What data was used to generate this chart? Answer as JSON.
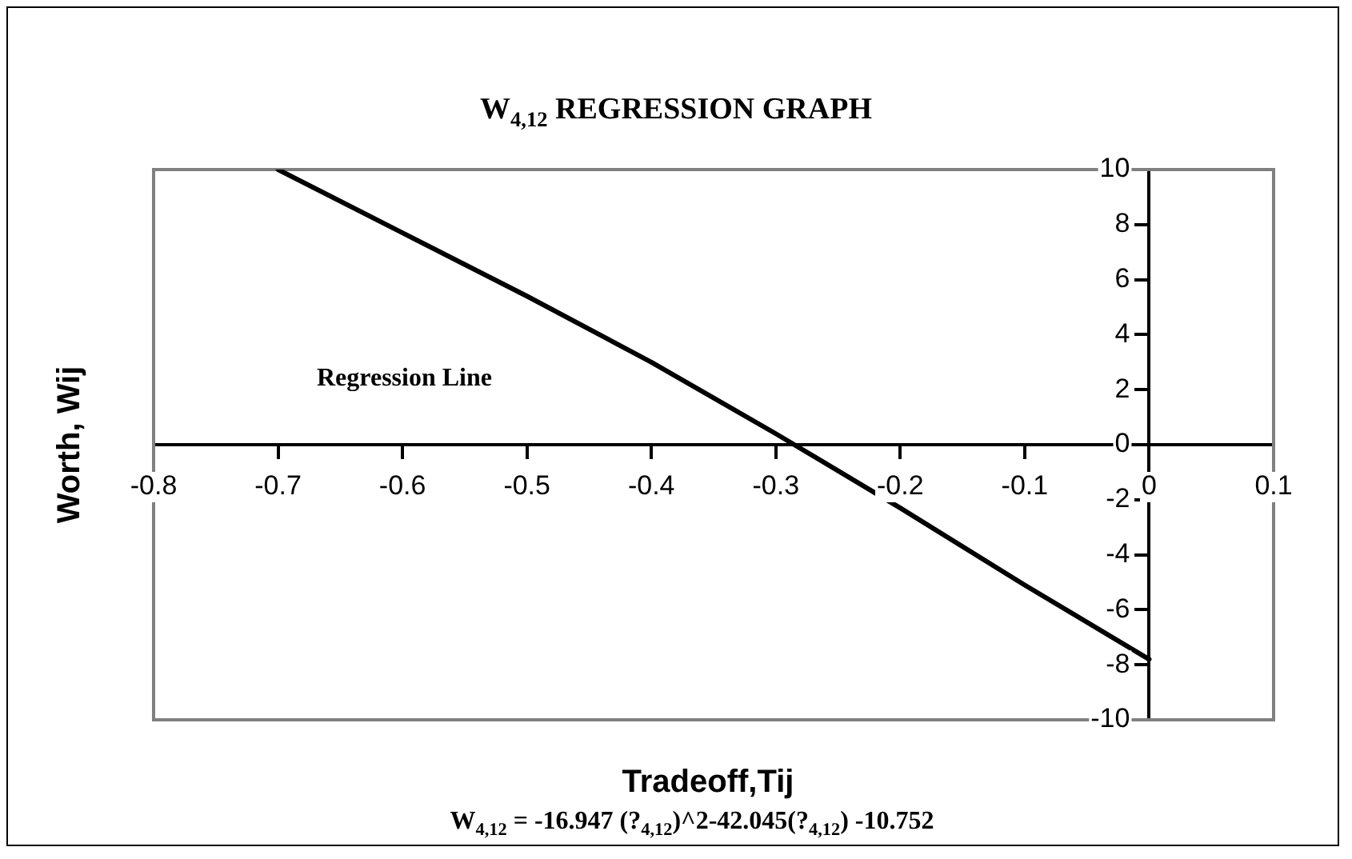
{
  "chart_data": {
    "type": "line",
    "title": "W$_{4,12}$ REGRESSION GRAPH",
    "xlabel": "Tradeoff,Tij",
    "ylabel": "Worth, Wij",
    "x": [
      -0.7,
      -0.6,
      -0.5,
      -0.4,
      -0.3,
      -0.2,
      -0.1,
      0
    ],
    "series": [
      {
        "color": "#000000",
        "values": [
          10,
          7.7,
          5.4,
          3.0,
          0.4,
          -2.3,
          -5.1,
          -7.8
        ]
      }
    ],
    "xlim": [
      -0.8,
      0.1
    ],
    "xticks": [
      -0.8,
      -0.7,
      -0.6,
      -0.5,
      -0.4,
      -0.3,
      -0.2,
      -0.1,
      0,
      0.1
    ],
    "ylim": [
      -10,
      10
    ],
    "yticks": [
      -10,
      -8,
      -6,
      -4,
      -2,
      0,
      2,
      4,
      6,
      8,
      10
    ],
    "grid": false,
    "legend": false,
    "marker": "none",
    "line_style": "solid",
    "annotations": [
      "Regression Line",
      "W$_{4,12}$ = -16.947 (?$_{4,12}$)^2-42.045(?$_{4,12}$) -10.752"
    ]
  }
}
